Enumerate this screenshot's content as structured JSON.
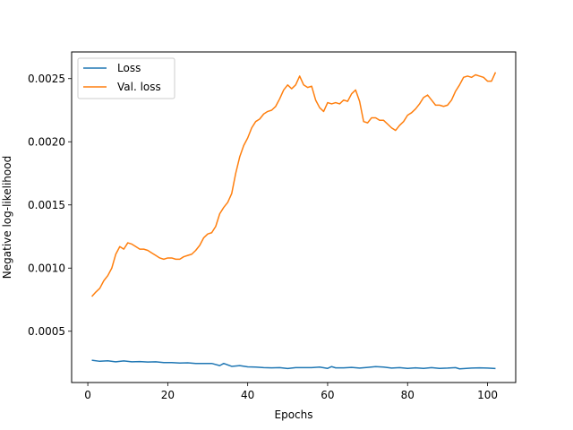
{
  "chart_data": {
    "type": "line",
    "xlabel": "Epochs",
    "ylabel": "Negative log-likelihood",
    "xlim": [
      -4.05,
      107.05
    ],
    "ylim": [
      9.4e-05,
      0.002711
    ],
    "xticks": [
      0,
      20,
      40,
      60,
      80,
      100
    ],
    "yticks": [
      0.0005,
      0.001,
      0.0015,
      0.002,
      0.0025
    ],
    "ytick_labels": [
      "0.0005",
      "0.0010",
      "0.0015",
      "0.0020",
      "0.0025"
    ],
    "grid": false,
    "legend_position": "top-left",
    "series": [
      {
        "name": "Loss",
        "color": "#1f77b4",
        "x": [
          1,
          3,
          5,
          7,
          9,
          11,
          13,
          15,
          17,
          19,
          21,
          23,
          25,
          27,
          29,
          31,
          33,
          34,
          36,
          38,
          40,
          42,
          44,
          46,
          48,
          50,
          52,
          54,
          56,
          58,
          60,
          61,
          62,
          64,
          66,
          68,
          70,
          72,
          74,
          76,
          78,
          80,
          82,
          84,
          86,
          88,
          90,
          92,
          93,
          96,
          98,
          100,
          102
        ],
        "y": [
          0.00027,
          0.000262,
          0.000266,
          0.000258,
          0.000265,
          0.000258,
          0.00026,
          0.000256,
          0.000258,
          0.000252,
          0.000252,
          0.000248,
          0.00025,
          0.000245,
          0.000245,
          0.000245,
          0.000228,
          0.000245,
          0.000222,
          0.000228,
          0.000218,
          0.000216,
          0.000212,
          0.00021,
          0.000212,
          0.000205,
          0.000212,
          0.000212,
          0.000212,
          0.000216,
          0.000206,
          0.00022,
          0.00021,
          0.00021,
          0.000214,
          0.000208,
          0.000214,
          0.00022,
          0.000216,
          0.000208,
          0.000212,
          0.000206,
          0.00021,
          0.000206,
          0.000212,
          0.000206,
          0.000208,
          0.000212,
          0.000202,
          0.000208,
          0.00021,
          0.000208,
          0.000205
        ]
      },
      {
        "name": "Val. loss",
        "color": "#ff7f0e",
        "x": [
          1,
          2,
          3,
          4,
          5,
          6,
          7,
          8,
          9,
          10,
          11,
          12,
          13,
          14,
          15,
          16,
          17,
          18,
          19,
          20,
          21,
          22,
          23,
          24,
          25,
          26,
          27,
          28,
          29,
          30,
          31,
          32,
          33,
          34,
          35,
          36,
          37,
          38,
          39,
          40,
          41,
          42,
          43,
          44,
          45,
          46,
          47,
          48,
          49,
          50,
          51,
          52,
          53,
          54,
          55,
          56,
          57,
          58,
          59,
          60,
          61,
          62,
          63,
          64,
          65,
          66,
          67,
          68,
          69,
          70,
          71,
          72,
          73,
          74,
          75,
          76,
          77,
          78,
          79,
          80,
          81,
          82,
          83,
          84,
          85,
          86,
          87,
          88,
          89,
          90,
          91,
          92,
          93,
          94,
          95,
          96,
          97,
          98,
          99,
          100,
          101,
          102
        ],
        "y": [
          0.000775,
          0.00081,
          0.00084,
          0.0009,
          0.00094,
          0.001,
          0.00111,
          0.00117,
          0.00115,
          0.0012,
          0.00119,
          0.00117,
          0.00115,
          0.00115,
          0.00114,
          0.00112,
          0.0011,
          0.00108,
          0.00107,
          0.00108,
          0.00108,
          0.00107,
          0.00107,
          0.00109,
          0.0011,
          0.00111,
          0.00114,
          0.00118,
          0.00124,
          0.00127,
          0.00128,
          0.00133,
          0.00143,
          0.00148,
          0.00152,
          0.00159,
          0.00175,
          0.00188,
          0.00197,
          0.00203,
          0.00211,
          0.00216,
          0.00218,
          0.00222,
          0.00224,
          0.00225,
          0.00228,
          0.00234,
          0.00241,
          0.00245,
          0.00242,
          0.00245,
          0.00252,
          0.00245,
          0.00243,
          0.00244,
          0.00233,
          0.00227,
          0.00224,
          0.00231,
          0.0023,
          0.00231,
          0.0023,
          0.00233,
          0.00232,
          0.00238,
          0.00241,
          0.00232,
          0.00216,
          0.00215,
          0.00219,
          0.00219,
          0.00217,
          0.00217,
          0.00214,
          0.00211,
          0.00209,
          0.00213,
          0.00216,
          0.00221,
          0.00223,
          0.00226,
          0.0023,
          0.00235,
          0.00237,
          0.00233,
          0.00229,
          0.00229,
          0.00228,
          0.00229,
          0.00233,
          0.0024,
          0.00245,
          0.00251,
          0.00252,
          0.00251,
          0.00253,
          0.00252,
          0.00251,
          0.00248,
          0.00248,
          0.00255
        ]
      }
    ]
  }
}
